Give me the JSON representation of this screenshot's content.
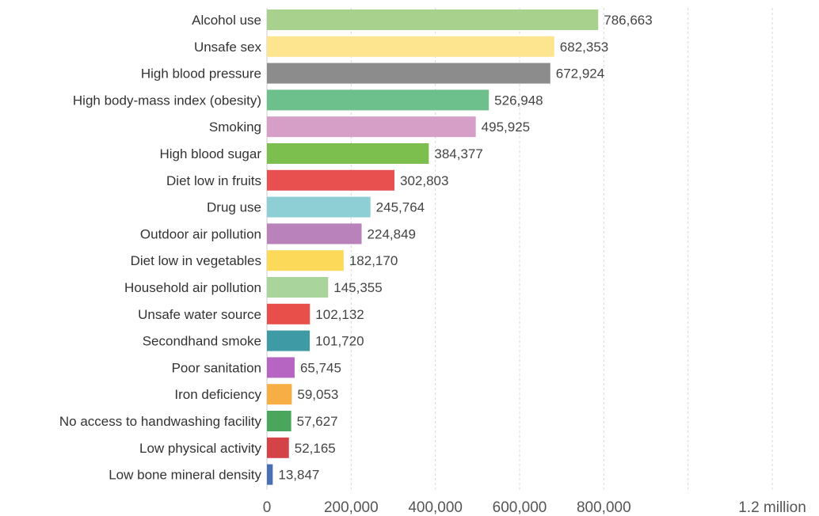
{
  "chart_data": {
    "type": "bar",
    "orientation": "horizontal",
    "categories": [
      "Alcohol use",
      "Unsafe sex",
      "High blood pressure",
      "High body-mass index (obesity)",
      "Smoking",
      "High blood sugar",
      "Diet low in fruits",
      "Drug use",
      "Outdoor air pollution",
      "Diet low in vegetables",
      "Household air pollution",
      "Unsafe water source",
      "Secondhand smoke",
      "Poor sanitation",
      "Iron deficiency",
      "No access to handwashing facility",
      "Low physical activity",
      "Low bone mineral density"
    ],
    "values": [
      786663,
      682353,
      672924,
      526948,
      495925,
      384377,
      302803,
      245764,
      224849,
      182170,
      145355,
      102132,
      101720,
      65745,
      59053,
      57627,
      52165,
      13847
    ],
    "value_labels": [
      "786,663",
      "682,353",
      "672,924",
      "526,948",
      "495,925",
      "384,377",
      "302,803",
      "245,764",
      "224,849",
      "182,170",
      "145,355",
      "102,132",
      "101,720",
      "65,745",
      "59,053",
      "57,627",
      "52,165",
      "13,847"
    ],
    "colors": [
      "#a9d18e",
      "#fde48f",
      "#8c8c8c",
      "#6dbf8c",
      "#d59fc8",
      "#7cbf4f",
      "#e8504f",
      "#8ecfd6",
      "#b982bb",
      "#fdd95a",
      "#a9d49b",
      "#e84f4b",
      "#3e9aa5",
      "#b765c3",
      "#f6ae45",
      "#4aa55d",
      "#d44347",
      "#4a6fb5"
    ],
    "x_ticks": [
      {
        "value": 0,
        "label": "0"
      },
      {
        "value": 200000,
        "label": "200,000"
      },
      {
        "value": 400000,
        "label": "400,000"
      },
      {
        "value": 600000,
        "label": "600,000"
      },
      {
        "value": 800000,
        "label": "800,000"
      },
      {
        "value": 1000000,
        "label": ""
      },
      {
        "value": 1200000,
        "label": "1.2 million"
      }
    ],
    "xlim": [
      0,
      1200000
    ],
    "grid": true,
    "title": "",
    "xlabel": "",
    "ylabel": ""
  }
}
